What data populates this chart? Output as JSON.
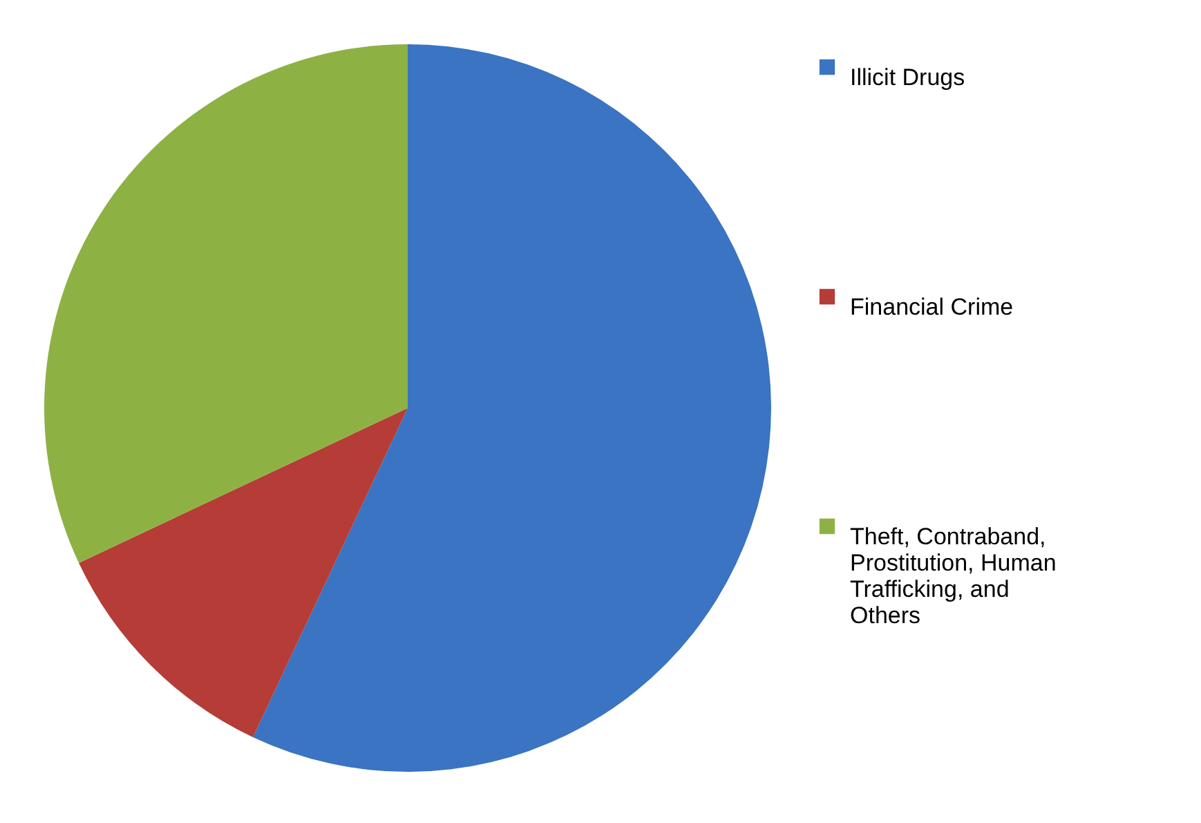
{
  "chart_data": {
    "type": "pie",
    "categories": [
      "Illicit Drugs",
      "Financial Crime",
      "Theft, Contraband, Prostitution, Human Trafficking, and Others"
    ],
    "values": [
      57,
      11,
      32
    ],
    "colors": [
      "#3a74c2",
      "#b53c37",
      "#8db243"
    ],
    "legend": "right"
  }
}
